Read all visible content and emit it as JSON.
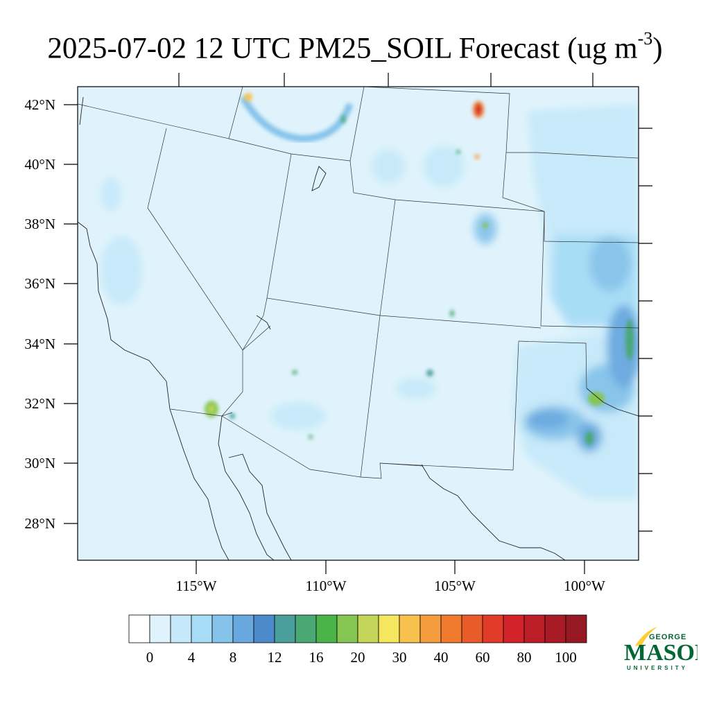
{
  "title": {
    "main": "2025-07-02 12 UTC PM25_SOIL Forecast (ug m",
    "superscript": "-3",
    "close": ")"
  },
  "axes": {
    "lat_labels": [
      "42°N",
      "40°N",
      "38°N",
      "36°N",
      "34°N",
      "32°N",
      "30°N",
      "28°N"
    ],
    "lon_labels": [
      "115°W",
      "110°W",
      "105°W",
      "100°W"
    ]
  },
  "colorbar": {
    "colors": [
      "#ffffff",
      "#e0f3fc",
      "#c6e9f9",
      "#a6dcf6",
      "#85c3ea",
      "#68a8df",
      "#4c8acb",
      "#4a9e9c",
      "#4aa874",
      "#4ab34a",
      "#85c552",
      "#c3d65a",
      "#f6e55e",
      "#f8c14e",
      "#f59d3e",
      "#f07a2e",
      "#e85b2a",
      "#e13c2a",
      "#d2232a",
      "#bb1e27",
      "#a81b25",
      "#951823"
    ],
    "labels": [
      "0",
      "4",
      "8",
      "12",
      "16",
      "20",
      "30",
      "40",
      "60",
      "80",
      "100"
    ]
  },
  "logo": {
    "top_text": "GEORGE",
    "main_text": "MASON",
    "bottom_text": "UNIVERSITY",
    "colors": {
      "green": "#006633",
      "gold": "#ffcc33"
    }
  },
  "colors": {
    "background_field": "#e0f3fc",
    "light": "#c6e9f9",
    "mid": "#a6dcf6"
  }
}
